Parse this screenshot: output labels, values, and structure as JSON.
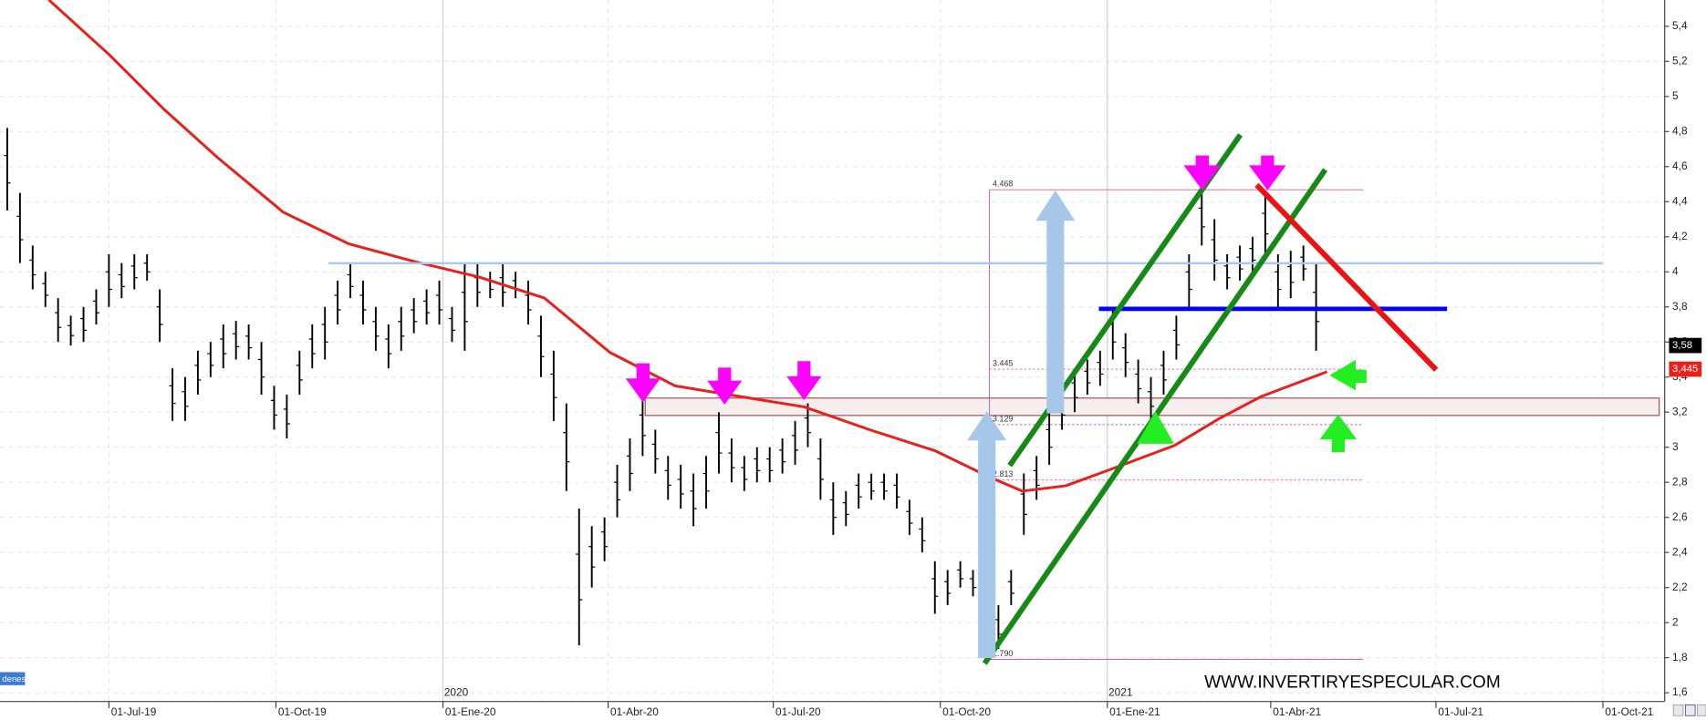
{
  "chart_data": {
    "type": "candlestick",
    "xlim": [
      "2019-05-02",
      "2021-11-04"
    ],
    "ylim": [
      1.55,
      5.55
    ],
    "xticks": [
      {
        "value": "2019-07-01",
        "label": "01-Jul-19"
      },
      {
        "value": "2019-10-01",
        "label": "01-Oct-19"
      },
      {
        "value": "2020-01-01",
        "label": "01-Ene-20"
      },
      {
        "value": "2020-04-01",
        "label": "01-Abr-20"
      },
      {
        "value": "2020-07-01",
        "label": "01-Jul-20"
      },
      {
        "value": "2020-10-01",
        "label": "01-Oct-20"
      },
      {
        "value": "2021-01-01",
        "label": "01-Ene-21"
      },
      {
        "value": "2021-04-01",
        "label": "01-Abr-21"
      },
      {
        "value": "2021-07-01",
        "label": "01-Jul-21"
      },
      {
        "value": "2021-10-01",
        "label": "01-Oct-21"
      }
    ],
    "year_ticks": [
      {
        "value": "2020-01-01",
        "label": "2020"
      },
      {
        "value": "2021-01-01",
        "label": "2021"
      }
    ],
    "yticks": [
      {
        "value": 1.6,
        "label": "1,6"
      },
      {
        "value": 1.8,
        "label": "1,8"
      },
      2,
      {
        "value": 2.2,
        "label": "2,2"
      },
      {
        "value": 2.4,
        "label": "2,4"
      },
      {
        "value": 2.6,
        "label": "2,6"
      },
      {
        "value": 2.8,
        "label": "2,8"
      },
      3,
      {
        "value": 3.2,
        "label": "3,2"
      },
      {
        "value": 3.4,
        "label": "3,4"
      },
      {
        "value": 3.6,
        "label": "3,6"
      },
      {
        "value": 3.8,
        "label": "3,8"
      },
      4,
      {
        "value": 4.2,
        "label": "4,2"
      },
      {
        "value": 4.4,
        "label": "4,4"
      },
      {
        "value": 4.6,
        "label": "4,6"
      },
      {
        "value": 4.8,
        "label": "4,8"
      },
      5,
      {
        "value": 5.2,
        "label": "5,2"
      },
      {
        "value": 5.4,
        "label": "5,4"
      }
    ],
    "grid": true,
    "candles": {
      "color": "#000000",
      "x": [
        "2019-05-06",
        "2019-05-13",
        "2019-05-20",
        "2019-05-27",
        "2019-06-03",
        "2019-06-10",
        "2019-06-17",
        "2019-06-24",
        "2019-07-01",
        "2019-07-08",
        "2019-07-15",
        "2019-07-22",
        "2019-07-29",
        "2019-08-05",
        "2019-08-12",
        "2019-08-19",
        "2019-08-26",
        "2019-09-02",
        "2019-09-09",
        "2019-09-16",
        "2019-09-23",
        "2019-09-30",
        "2019-10-07",
        "2019-10-14",
        "2019-10-21",
        "2019-10-28",
        "2019-11-04",
        "2019-11-11",
        "2019-11-18",
        "2019-11-25",
        "2019-12-02",
        "2019-12-09",
        "2019-12-16",
        "2019-12-23",
        "2019-12-30",
        "2020-01-06",
        "2020-01-13",
        "2020-01-20",
        "2020-01-27",
        "2020-02-03",
        "2020-02-10",
        "2020-02-17",
        "2020-02-24",
        "2020-03-02",
        "2020-03-09",
        "2020-03-16",
        "2020-03-23",
        "2020-03-30",
        "2020-04-06",
        "2020-04-13",
        "2020-04-20",
        "2020-04-27",
        "2020-05-04",
        "2020-05-11",
        "2020-05-18",
        "2020-05-25",
        "2020-06-01",
        "2020-06-08",
        "2020-06-15",
        "2020-06-22",
        "2020-06-29",
        "2020-07-06",
        "2020-07-13",
        "2020-07-20",
        "2020-07-27",
        "2020-08-03",
        "2020-08-10",
        "2020-08-17",
        "2020-08-24",
        "2020-08-31",
        "2020-09-07",
        "2020-09-14",
        "2020-09-21",
        "2020-09-28",
        "2020-10-05",
        "2020-10-12",
        "2020-10-19",
        "2020-10-26",
        "2020-11-02",
        "2020-11-09",
        "2020-11-16",
        "2020-11-23",
        "2020-11-30",
        "2020-12-07",
        "2020-12-14",
        "2020-12-21",
        "2020-12-28",
        "2021-01-04",
        "2021-01-11",
        "2021-01-18",
        "2021-01-25",
        "2021-02-01",
        "2021-02-08",
        "2021-02-15",
        "2021-02-22",
        "2021-03-01",
        "2021-03-08",
        "2021-03-15",
        "2021-03-22",
        "2021-03-29",
        "2021-04-05",
        "2021-04-12",
        "2021-04-19",
        "2021-04-26"
      ],
      "high": [
        4.82,
        4.45,
        4.15,
        4.0,
        3.85,
        3.75,
        3.8,
        3.9,
        4.1,
        4.05,
        4.1,
        4.1,
        3.9,
        3.45,
        3.4,
        3.55,
        3.6,
        3.7,
        3.72,
        3.7,
        3.6,
        3.35,
        3.3,
        3.55,
        3.7,
        3.8,
        3.95,
        4.05,
        3.95,
        3.8,
        3.7,
        3.8,
        3.85,
        3.9,
        3.95,
        3.8,
        4.05,
        4.05,
        4.0,
        4.05,
        4.0,
        3.95,
        3.75,
        3.55,
        3.25,
        2.65,
        2.55,
        2.6,
        2.9,
        3.05,
        3.3,
        3.1,
        2.95,
        2.9,
        2.85,
        2.95,
        3.2,
        3.05,
        2.95,
        3.0,
        3.0,
        3.05,
        3.15,
        3.25,
        3.05,
        2.8,
        2.75,
        2.85,
        2.85,
        2.85,
        2.85,
        2.7,
        2.6,
        2.35,
        2.3,
        2.35,
        2.3,
        2.05,
        2.1,
        2.3,
        2.85,
        2.95,
        3.2,
        3.35,
        3.45,
        3.5,
        3.55,
        3.8,
        3.65,
        3.5,
        3.4,
        3.55,
        3.75,
        4.1,
        4.47,
        4.3,
        4.1,
        4.15,
        4.2,
        4.45,
        4.1,
        4.12,
        4.15,
        4.05
      ],
      "low": [
        4.35,
        4.05,
        3.9,
        3.8,
        3.6,
        3.58,
        3.6,
        3.7,
        3.8,
        3.85,
        3.9,
        3.95,
        3.6,
        3.15,
        3.15,
        3.3,
        3.4,
        3.45,
        3.5,
        3.5,
        3.3,
        3.1,
        3.05,
        3.3,
        3.45,
        3.5,
        3.7,
        3.85,
        3.7,
        3.55,
        3.45,
        3.55,
        3.65,
        3.7,
        3.7,
        3.6,
        3.55,
        3.8,
        3.85,
        3.8,
        3.85,
        3.7,
        3.4,
        3.15,
        2.75,
        1.87,
        2.2,
        2.35,
        2.6,
        2.75,
        2.95,
        2.85,
        2.7,
        2.65,
        2.55,
        2.65,
        2.85,
        2.8,
        2.75,
        2.8,
        2.8,
        2.85,
        2.9,
        3.0,
        2.7,
        2.5,
        2.55,
        2.65,
        2.7,
        2.7,
        2.65,
        2.5,
        2.4,
        2.05,
        2.1,
        2.2,
        2.15,
        1.79,
        1.85,
        2.1,
        2.5,
        2.7,
        2.9,
        3.1,
        3.2,
        3.3,
        3.35,
        3.5,
        3.4,
        3.25,
        3.15,
        3.3,
        3.5,
        3.8,
        4.15,
        3.95,
        3.9,
        3.95,
        4.0,
        4.1,
        3.8,
        3.85,
        3.95,
        3.55
      ]
    },
    "moving_average": {
      "color": "#e8201c",
      "x": [
        "2019-05-29",
        "2019-07-01",
        "2019-07-31",
        "2019-08-30",
        "2019-10-05",
        "2019-11-10",
        "2019-12-16",
        "2020-01-21",
        "2020-02-26",
        "2020-04-02",
        "2020-05-08",
        "2020-06-12",
        "2020-07-18",
        "2020-08-23",
        "2020-09-28",
        "2020-10-28",
        "2020-11-15",
        "2020-12-09",
        "2021-01-02",
        "2021-02-07",
        "2021-03-03",
        "2021-03-27",
        "2021-05-02"
      ],
      "values": [
        5.55,
        5.24,
        4.93,
        4.65,
        4.34,
        4.16,
        4.06,
        3.97,
        3.85,
        3.54,
        3.35,
        3.29,
        3.23,
        3.1,
        2.98,
        2.83,
        2.75,
        2.78,
        2.87,
        3.01,
        3.16,
        3.29,
        3.43
      ]
    },
    "fib_range": {
      "x": [
        "2020-10-28",
        "2021-05-22"
      ]
    },
    "levels": [
      4.468,
      3.445,
      3.129,
      2.813,
      {
        "value": 1.79,
        "label": "1.790"
      }
    ],
    "price_tags": [
      {
        "value": 3.58,
        "label": "3,58",
        "color": "#000000"
      },
      {
        "value": 3.445,
        "label": "3,445",
        "color": "#e8201c"
      }
    ],
    "watermark": "WWW.INVERTIRYESPECULAR.COM",
    "panel_tab": "denes"
  }
}
